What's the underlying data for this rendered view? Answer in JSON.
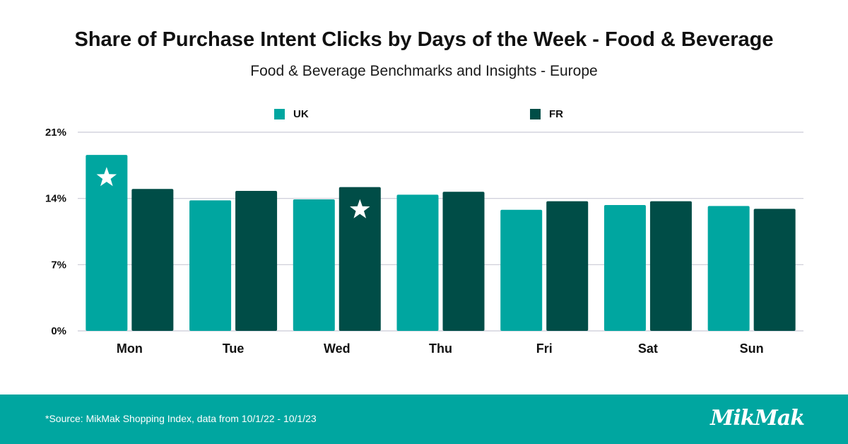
{
  "title": "Share of Purchase Intent Clicks by Days of the Week - Food & Beverage",
  "subtitle": "Food & Beverage Benchmarks and Insights - Europe",
  "footer": {
    "source": "*Source: MikMak Shopping Index, data from 10/1/22 - 10/1/23",
    "logo_text": "MikMak"
  },
  "colors": {
    "uk": "#00a6a0",
    "fr": "#004d47",
    "footer_bg": "#00a6a0",
    "grid": "#c9c9d6"
  },
  "chart_data": {
    "type": "bar",
    "categories": [
      "Mon",
      "Tue",
      "Wed",
      "Thu",
      "Fri",
      "Sat",
      "Sun"
    ],
    "series": [
      {
        "name": "UK",
        "values": [
          18.6,
          13.8,
          13.9,
          14.4,
          12.8,
          13.3,
          13.2
        ]
      },
      {
        "name": "FR",
        "values": [
          15.0,
          14.8,
          15.2,
          14.7,
          13.7,
          13.7,
          12.9
        ]
      }
    ],
    "y_ticks": [
      "0%",
      "7%",
      "14%",
      "21%"
    ],
    "y_tick_values": [
      0,
      7,
      14,
      21
    ],
    "ylim": [
      0,
      21
    ],
    "grid": true,
    "legend_position": "top",
    "highlights": [
      {
        "series": "UK",
        "category": "Mon",
        "marker": "star-icon"
      },
      {
        "series": "FR",
        "category": "Wed",
        "marker": "star-icon"
      }
    ]
  }
}
